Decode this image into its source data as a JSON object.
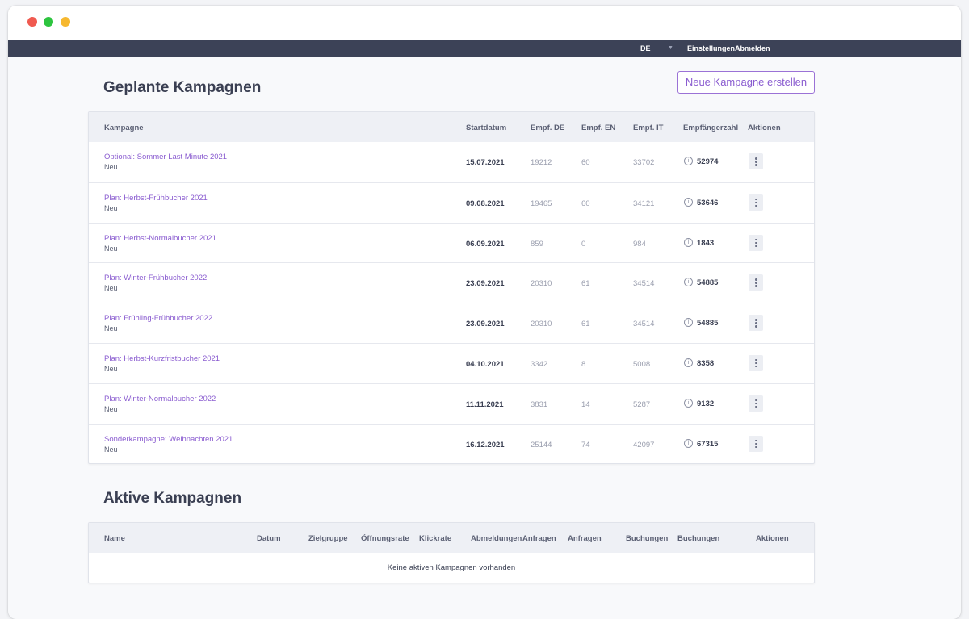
{
  "topnav": {
    "language": "DE",
    "settings": "Einstellungen",
    "logout": "Abmelden"
  },
  "planned": {
    "title": "Geplante Kampagnen",
    "new_button": "Neue Kampagne erstellen",
    "headers": {
      "campaign": "Kampagne",
      "start": "Startdatum",
      "de": "Empf. DE",
      "en": "Empf. EN",
      "it": "Empf. IT",
      "total": "Empfängerzahl",
      "actions": "Aktionen"
    },
    "rows": [
      {
        "name": "Optional: Sommer Last Minute 2021",
        "status": "Neu",
        "date": "15.07.2021",
        "de": "19212",
        "en": "60",
        "it": "33702",
        "total": "52974"
      },
      {
        "name": "Plan: Herbst-Frühbucher 2021",
        "status": "Neu",
        "date": "09.08.2021",
        "de": "19465",
        "en": "60",
        "it": "34121",
        "total": "53646"
      },
      {
        "name": "Plan: Herbst-Normalbucher 2021",
        "status": "Neu",
        "date": "06.09.2021",
        "de": "859",
        "en": "0",
        "it": "984",
        "total": "1843"
      },
      {
        "name": "Plan: Winter-Frühbucher 2022",
        "status": "Neu",
        "date": "23.09.2021",
        "de": "20310",
        "en": "61",
        "it": "34514",
        "total": "54885"
      },
      {
        "name": "Plan: Frühling-Frühbucher 2022",
        "status": "Neu",
        "date": "23.09.2021",
        "de": "20310",
        "en": "61",
        "it": "34514",
        "total": "54885"
      },
      {
        "name": "Plan: Herbst-Kurzfristbucher 2021",
        "status": "Neu",
        "date": "04.10.2021",
        "de": "3342",
        "en": "8",
        "it": "5008",
        "total": "8358"
      },
      {
        "name": "Plan: Winter-Normalbucher 2022",
        "status": "Neu",
        "date": "11.11.2021",
        "de": "3831",
        "en": "14",
        "it": "5287",
        "total": "9132"
      },
      {
        "name": "Sonderkampagne: Weihnachten 2021",
        "status": "Neu",
        "date": "16.12.2021",
        "de": "25144",
        "en": "74",
        "it": "42097",
        "total": "67315"
      }
    ]
  },
  "active": {
    "title": "Aktive Kampagnen",
    "headers": [
      "Name",
      "Datum",
      "Zielgruppe",
      "Öffnungsrate",
      "Klickrate",
      "Abmeldungen",
      "Anfragen",
      "Anfragen",
      "Buchungen",
      "Buchungen",
      "Aktionen"
    ],
    "empty_text": "Keine aktiven Kampagnen vorhanden"
  },
  "colors": {
    "accent": "#8a5cd0",
    "nav": "#3c4257"
  }
}
